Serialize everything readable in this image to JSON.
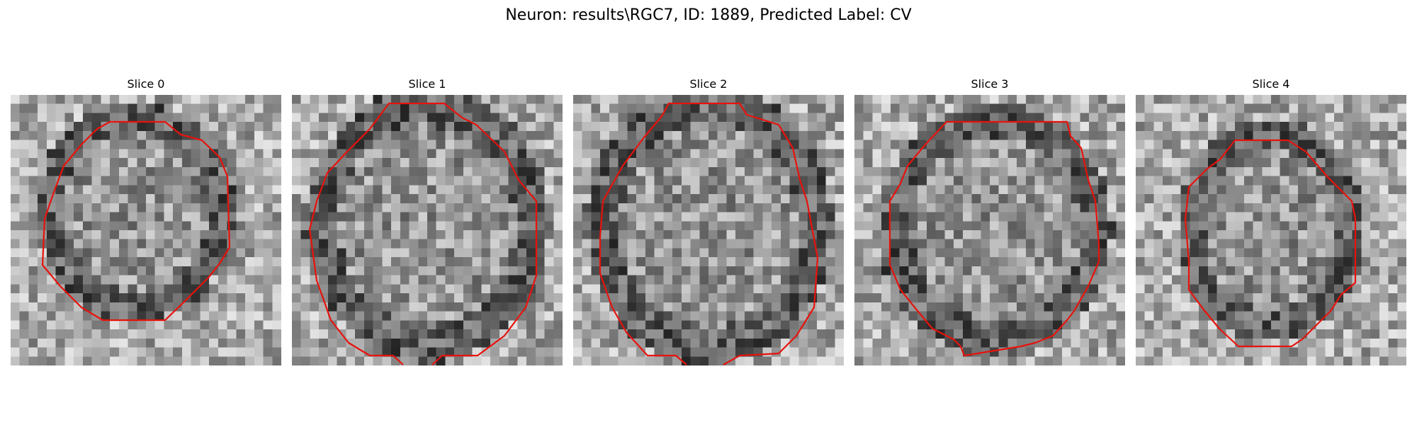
{
  "figure": {
    "title": "Neuron: results\\RGC7, ID: 1889, Predicted Label: CV"
  },
  "colors": {
    "contour": "#e8120c",
    "background": "#ffffff"
  },
  "slices": [
    {
      "title": "Slice 0"
    },
    {
      "title": "Slice 1"
    },
    {
      "title": "Slice 2"
    },
    {
      "title": "Slice 3"
    },
    {
      "title": "Slice 4"
    }
  ]
}
